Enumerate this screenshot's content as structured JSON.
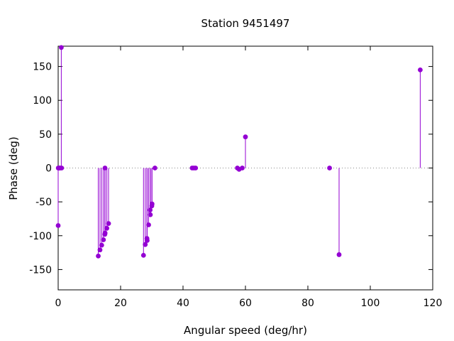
{
  "chart_data": {
    "type": "scatter",
    "style": "impulses-with-points",
    "title": "Station 9451497",
    "xlabel": "Angular speed (deg/hr)",
    "ylabel": "Phase (deg)",
    "xlim": [
      0,
      120
    ],
    "ylim": [
      -180,
      180
    ],
    "xticks": [
      0,
      20,
      40,
      60,
      80,
      100,
      120
    ],
    "yticks": [
      -150,
      -100,
      -50,
      0,
      50,
      100,
      150
    ],
    "zero_line": "dotted",
    "grid": false,
    "color": "#9400d3",
    "series": [
      {
        "points": [
          {
            "x": 0.0,
            "y": -85
          },
          {
            "x": 0.04,
            "y": 0
          },
          {
            "x": 0.08,
            "y": 0
          },
          {
            "x": 0.5,
            "y": 0
          },
          {
            "x": 0.55,
            "y": 0
          },
          {
            "x": 1.0,
            "y": 178
          },
          {
            "x": 1.1,
            "y": 0
          },
          {
            "x": 12.85,
            "y": -130
          },
          {
            "x": 13.4,
            "y": -121
          },
          {
            "x": 13.94,
            "y": -114
          },
          {
            "x": 14.5,
            "y": -106
          },
          {
            "x": 14.96,
            "y": -98
          },
          {
            "x": 15.0,
            "y": 0
          },
          {
            "x": 15.04,
            "y": -96
          },
          {
            "x": 15.59,
            "y": -89
          },
          {
            "x": 16.14,
            "y": -82
          },
          {
            "x": 27.34,
            "y": -129
          },
          {
            "x": 27.9,
            "y": -113
          },
          {
            "x": 28.44,
            "y": -104
          },
          {
            "x": 28.51,
            "y": -107
          },
          {
            "x": 28.98,
            "y": -84
          },
          {
            "x": 29.53,
            "y": -69
          },
          {
            "x": 29.46,
            "y": -62
          },
          {
            "x": 30.0,
            "y": -56
          },
          {
            "x": 30.08,
            "y": -53
          },
          {
            "x": 31.0,
            "y": 0
          },
          {
            "x": 42.93,
            "y": 0
          },
          {
            "x": 43.48,
            "y": 0
          },
          {
            "x": 44.03,
            "y": 0
          },
          {
            "x": 57.42,
            "y": 0
          },
          {
            "x": 57.97,
            "y": -2
          },
          {
            "x": 58.98,
            "y": 0
          },
          {
            "x": 60.0,
            "y": 46
          },
          {
            "x": 86.95,
            "y": 0
          },
          {
            "x": 90.0,
            "y": -128
          },
          {
            "x": 116.0,
            "y": 145
          }
        ]
      }
    ]
  }
}
